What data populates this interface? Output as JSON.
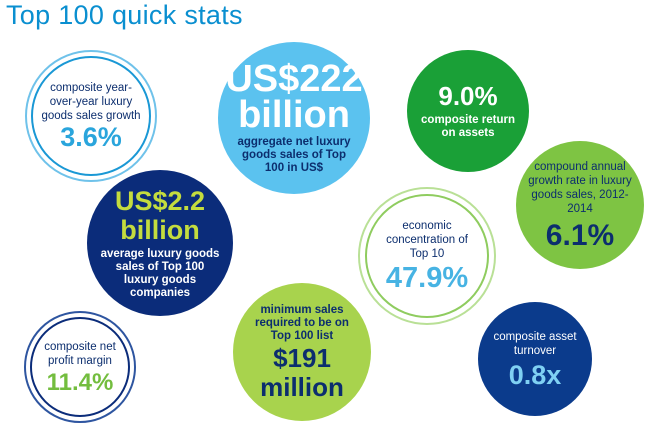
{
  "title": "Top 100 quick stats",
  "colors": {
    "title": "#0a8fd0",
    "light_blue": "#5bc2ef",
    "green": "#1aa037",
    "navy": "#0b2c7a",
    "lime": "#7ec443",
    "light_green": "#a8d34d"
  },
  "stats": {
    "yoy_growth": {
      "label": "composite year-over-year luxury goods sales growth",
      "value": "3.6%"
    },
    "aggregate_sales": {
      "value_line1": "US$222",
      "value_line2": "billion",
      "label": "aggregate net luxury goods sales of Top 100 in US$"
    },
    "return_on_assets": {
      "value": "9.0%",
      "label": "composite return on assets"
    },
    "average_sales": {
      "value_line1": "US$2.2",
      "value_line2": "billion",
      "label": "average luxury goods sales of Top 100 luxury goods companies"
    },
    "cagr": {
      "label": "compound annual growth rate in luxury goods sales, 2012-2014",
      "value": "6.1%"
    },
    "concentration": {
      "label": "economic concentration of Top 10",
      "value": "47.9%"
    },
    "minimum_sales": {
      "label": "minimum sales required to be on Top 100 list",
      "value_line1": "$191",
      "value_line2": "million"
    },
    "net_profit_margin": {
      "label": "composite net profit margin",
      "value": "11.4%"
    },
    "asset_turnover": {
      "label": "composite asset turnover",
      "value": "0.8x"
    }
  }
}
